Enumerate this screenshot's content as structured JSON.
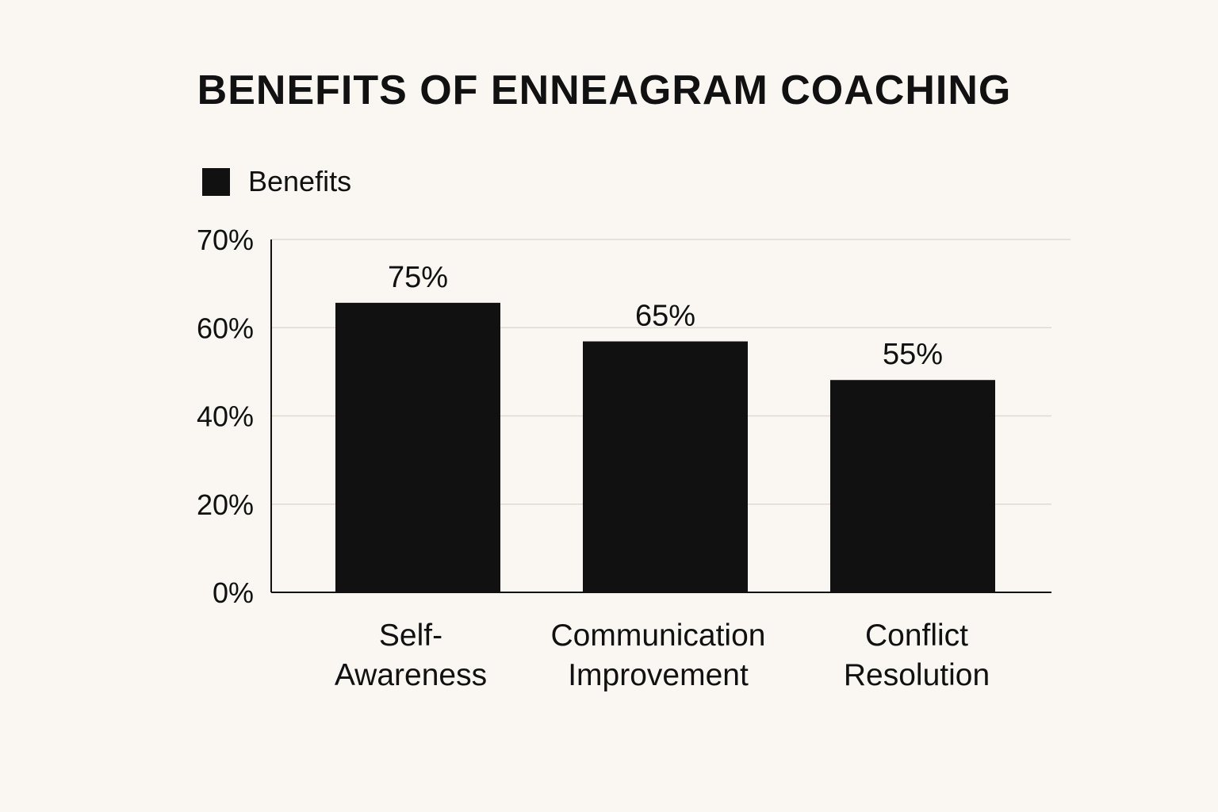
{
  "chart_data": {
    "type": "bar",
    "title": "BENEFITS OF ENNEAGRAM COACHING",
    "legend": {
      "label": "Benefits",
      "position": "top-left"
    },
    "categories": [
      [
        "Self-",
        "Awareness"
      ],
      [
        "Communication",
        "Improvement"
      ],
      [
        "Conflict",
        "Resolution"
      ]
    ],
    "series": [
      {
        "name": "Benefits",
        "values": [
          75,
          65,
          55
        ],
        "labels": [
          "75%",
          "65%",
          "55%"
        ],
        "color": "#111111"
      }
    ],
    "yticks": [
      "0%",
      "20%",
      "40%",
      "60%",
      "70%"
    ],
    "ylim": [
      0,
      91.4
    ],
    "grid": true,
    "xlabel": "",
    "ylabel": ""
  }
}
